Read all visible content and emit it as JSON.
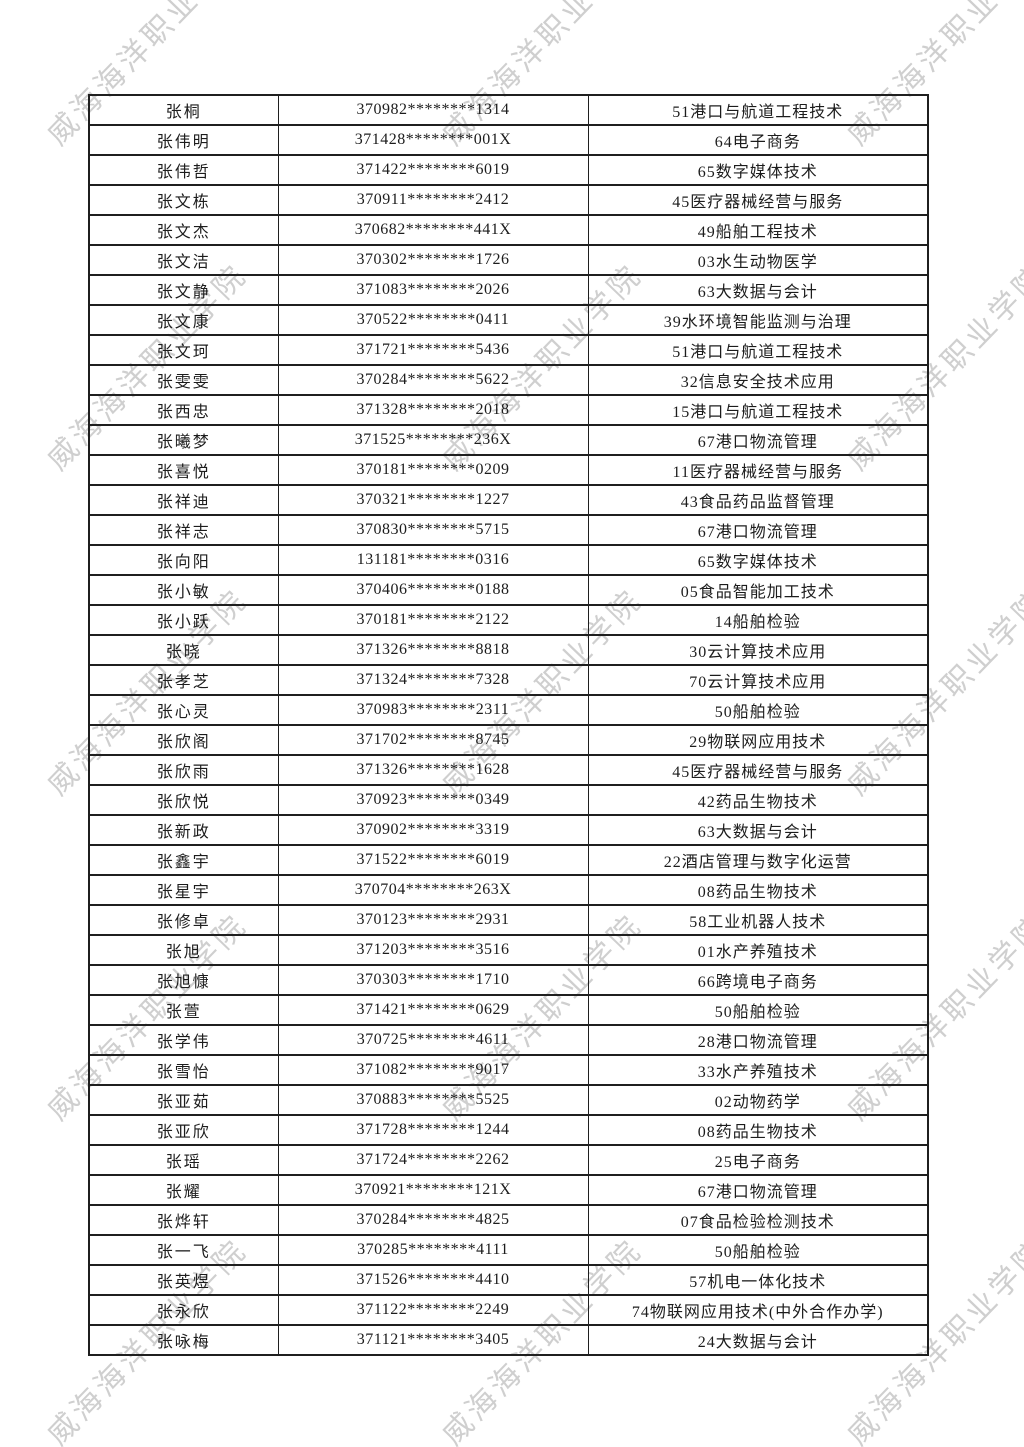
{
  "page": {
    "watermark_text": "威海海洋职业学院"
  },
  "table": {
    "rows": [
      {
        "name": "张桐",
        "id": "370982********1314",
        "major": "51港口与航道工程技术"
      },
      {
        "name": "张伟明",
        "id": "371428********001X",
        "major": "64电子商务"
      },
      {
        "name": "张伟哲",
        "id": "371422********6019",
        "major": "65数字媒体技术"
      },
      {
        "name": "张文栋",
        "id": "370911********2412",
        "major": "45医疗器械经营与服务"
      },
      {
        "name": "张文杰",
        "id": "370682********441X",
        "major": "49船舶工程技术"
      },
      {
        "name": "张文洁",
        "id": "370302********1726",
        "major": "03水生动物医学"
      },
      {
        "name": "张文静",
        "id": "371083********2026",
        "major": "63大数据与会计"
      },
      {
        "name": "张文康",
        "id": "370522********0411",
        "major": "39水环境智能监测与治理"
      },
      {
        "name": "张文珂",
        "id": "371721********5436",
        "major": "51港口与航道工程技术"
      },
      {
        "name": "张雯雯",
        "id": "370284********5622",
        "major": "32信息安全技术应用"
      },
      {
        "name": "张西忠",
        "id": "371328********2018",
        "major": "15港口与航道工程技术"
      },
      {
        "name": "张曦梦",
        "id": "371525********236X",
        "major": "67港口物流管理"
      },
      {
        "name": "张喜悦",
        "id": "370181********0209",
        "major": "11医疗器械经营与服务"
      },
      {
        "name": "张祥迪",
        "id": "370321********1227",
        "major": "43食品药品监督管理"
      },
      {
        "name": "张祥志",
        "id": "370830********5715",
        "major": "67港口物流管理"
      },
      {
        "name": "张向阳",
        "id": "131181********0316",
        "major": "65数字媒体技术"
      },
      {
        "name": "张小敏",
        "id": "370406********0188",
        "major": "05食品智能加工技术"
      },
      {
        "name": "张小跃",
        "id": "370181********2122",
        "major": "14船舶检验"
      },
      {
        "name": "张晓",
        "id": "371326********8818",
        "major": "30云计算技术应用"
      },
      {
        "name": "张孝芝",
        "id": "371324********7328",
        "major": "70云计算技术应用"
      },
      {
        "name": "张心灵",
        "id": "370983********2311",
        "major": "50船舶检验"
      },
      {
        "name": "张欣阁",
        "id": "371702********8745",
        "major": "29物联网应用技术"
      },
      {
        "name": "张欣雨",
        "id": "371326********1628",
        "major": "45医疗器械经营与服务"
      },
      {
        "name": "张欣悦",
        "id": "370923********0349",
        "major": "42药品生物技术"
      },
      {
        "name": "张新政",
        "id": "370902********3319",
        "major": "63大数据与会计"
      },
      {
        "name": "张鑫宇",
        "id": "371522********6019",
        "major": "22酒店管理与数字化运营"
      },
      {
        "name": "张星宇",
        "id": "370704********263X",
        "major": "08药品生物技术"
      },
      {
        "name": "张修卓",
        "id": "370123********2931",
        "major": "58工业机器人技术"
      },
      {
        "name": "张旭",
        "id": "371203********3516",
        "major": "01水产养殖技术"
      },
      {
        "name": "张旭慷",
        "id": "370303********1710",
        "major": "66跨境电子商务"
      },
      {
        "name": "张萱",
        "id": "371421********0629",
        "major": "50船舶检验"
      },
      {
        "name": "张学伟",
        "id": "370725********4611",
        "major": "28港口物流管理"
      },
      {
        "name": "张雪怡",
        "id": "371082********9017",
        "major": "33水产养殖技术"
      },
      {
        "name": "张亚茹",
        "id": "370883********5525",
        "major": "02动物药学"
      },
      {
        "name": "张亚欣",
        "id": "371728********1244",
        "major": "08药品生物技术"
      },
      {
        "name": "张瑶",
        "id": "371724********2262",
        "major": "25电子商务"
      },
      {
        "name": "张耀",
        "id": "370921********121X",
        "major": "67港口物流管理"
      },
      {
        "name": "张烨轩",
        "id": "370284********4825",
        "major": "07食品检验检测技术"
      },
      {
        "name": "张一飞",
        "id": "370285********4111",
        "major": "50船舶检验"
      },
      {
        "name": "张英煜",
        "id": "371526********4410",
        "major": "57机电一体化技术"
      },
      {
        "name": "张永欣",
        "id": "371122********2249",
        "major": "74物联网应用技术(中外合作办学)"
      },
      {
        "name": "张咏梅",
        "id": "371121********3405",
        "major": "24大数据与会计"
      }
    ]
  }
}
